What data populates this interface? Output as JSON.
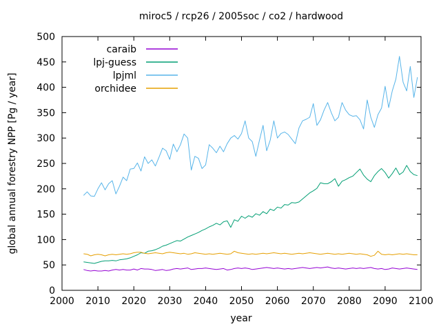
{
  "figure": {
    "background": "#ffffff",
    "axis_color": "#000000",
    "text_color": "#000000"
  },
  "chart_data": {
    "type": "line",
    "title": "miroc5 / rcp26 / 2005soc / co2 / hardwood",
    "xlabel": "year",
    "ylabel": "global annual forestry NPP [Pg / year]",
    "xlim": [
      2000,
      2100
    ],
    "ylim": [
      0,
      500
    ],
    "x_ticks": [
      2000,
      2010,
      2020,
      2030,
      2040,
      2050,
      2060,
      2070,
      2080,
      2090,
      2100
    ],
    "y_ticks": [
      0,
      50,
      100,
      150,
      200,
      250,
      300,
      350,
      400,
      450,
      500
    ],
    "grid": false,
    "legend_position": "top-left-inside",
    "x": [
      2006,
      2007,
      2008,
      2009,
      2010,
      2011,
      2012,
      2013,
      2014,
      2015,
      2016,
      2017,
      2018,
      2019,
      2020,
      2021,
      2022,
      2023,
      2024,
      2025,
      2026,
      2027,
      2028,
      2029,
      2030,
      2031,
      2032,
      2033,
      2034,
      2035,
      2036,
      2037,
      2038,
      2039,
      2040,
      2041,
      2042,
      2043,
      2044,
      2045,
      2046,
      2047,
      2048,
      2049,
      2050,
      2051,
      2052,
      2053,
      2054,
      2055,
      2056,
      2057,
      2058,
      2059,
      2060,
      2061,
      2062,
      2063,
      2064,
      2065,
      2066,
      2067,
      2068,
      2069,
      2070,
      2071,
      2072,
      2073,
      2074,
      2075,
      2076,
      2077,
      2078,
      2079,
      2080,
      2081,
      2082,
      2083,
      2084,
      2085,
      2086,
      2087,
      2088,
      2089,
      2090,
      2091,
      2092,
      2093,
      2094,
      2095,
      2096,
      2097,
      2098,
      2099
    ],
    "series": [
      {
        "name": "caraib",
        "color": "#9400d3",
        "values": [
          41,
          39,
          38,
          39,
          38,
          38,
          39,
          38,
          40,
          41,
          40,
          41,
          40,
          40,
          42,
          40,
          43,
          42,
          42,
          41,
          39,
          40,
          41,
          39,
          40,
          42,
          43,
          42,
          43,
          44,
          41,
          42,
          43,
          43,
          44,
          43,
          42,
          41,
          42,
          43,
          40,
          41,
          43,
          44,
          43,
          44,
          43,
          41,
          42,
          43,
          44,
          45,
          44,
          43,
          44,
          43,
          42,
          43,
          42,
          43,
          44,
          45,
          44,
          43,
          44,
          45,
          44,
          45,
          46,
          44,
          43,
          44,
          43,
          42,
          43,
          44,
          43,
          44,
          43,
          44,
          45,
          43,
          42,
          43,
          41,
          42,
          44,
          43,
          42,
          43,
          44,
          43,
          42,
          41
        ]
      },
      {
        "name": "lpj-guess",
        "color": "#009e73",
        "values": [
          56,
          55,
          54,
          53,
          55,
          57,
          58,
          58,
          59,
          58,
          60,
          61,
          62,
          64,
          67,
          70,
          74,
          73,
          77,
          78,
          80,
          83,
          87,
          89,
          92,
          95,
          98,
          97,
          101,
          105,
          108,
          111,
          114,
          118,
          121,
          125,
          128,
          132,
          129,
          135,
          137,
          124,
          139,
          136,
          146,
          142,
          147,
          144,
          151,
          148,
          155,
          151,
          160,
          157,
          164,
          162,
          169,
          168,
          173,
          172,
          174,
          180,
          186,
          192,
          196,
          201,
          212,
          210,
          210,
          214,
          220,
          205,
          215,
          218,
          222,
          225,
          232,
          239,
          227,
          219,
          214,
          226,
          234,
          240,
          232,
          221,
          230,
          241,
          228,
          233,
          246,
          234,
          228,
          226
        ]
      },
      {
        "name": "lpjml",
        "color": "#56b4e9",
        "values": [
          187,
          194,
          186,
          185,
          200,
          212,
          198,
          210,
          216,
          190,
          205,
          223,
          216,
          239,
          240,
          251,
          235,
          263,
          250,
          257,
          245,
          262,
          280,
          275,
          258,
          288,
          273,
          287,
          308,
          300,
          237,
          264,
          260,
          240,
          247,
          287,
          280,
          271,
          284,
          273,
          289,
          300,
          305,
          298,
          309,
          334,
          300,
          293,
          264,
          296,
          325,
          275,
          296,
          334,
          300,
          309,
          312,
          307,
          298,
          289,
          320,
          334,
          337,
          341,
          368,
          325,
          336,
          355,
          370,
          350,
          334,
          341,
          370,
          355,
          346,
          343,
          344,
          336,
          318,
          375,
          341,
          321,
          346,
          359,
          402,
          360,
          393,
          416,
          461,
          410,
          393,
          441,
          380,
          420
        ]
      },
      {
        "name": "orchidee",
        "color": "#e69f00",
        "values": [
          72,
          71,
          68,
          70,
          71,
          70,
          68,
          70,
          71,
          70,
          71,
          72,
          71,
          72,
          74,
          75,
          75,
          73,
          72,
          73,
          74,
          73,
          72,
          74,
          75,
          74,
          73,
          72,
          73,
          71,
          72,
          74,
          73,
          72,
          71,
          72,
          71,
          72,
          73,
          72,
          71,
          72,
          77,
          74,
          73,
          72,
          71,
          72,
          71,
          72,
          73,
          72,
          73,
          74,
          73,
          72,
          73,
          72,
          71,
          72,
          73,
          72,
          73,
          74,
          73,
          72,
          71,
          72,
          73,
          72,
          71,
          72,
          71,
          72,
          73,
          72,
          71,
          72,
          71,
          70,
          67,
          69,
          77,
          71,
          70,
          71,
          70,
          71,
          72,
          71,
          72,
          71,
          70,
          70
        ]
      }
    ]
  }
}
